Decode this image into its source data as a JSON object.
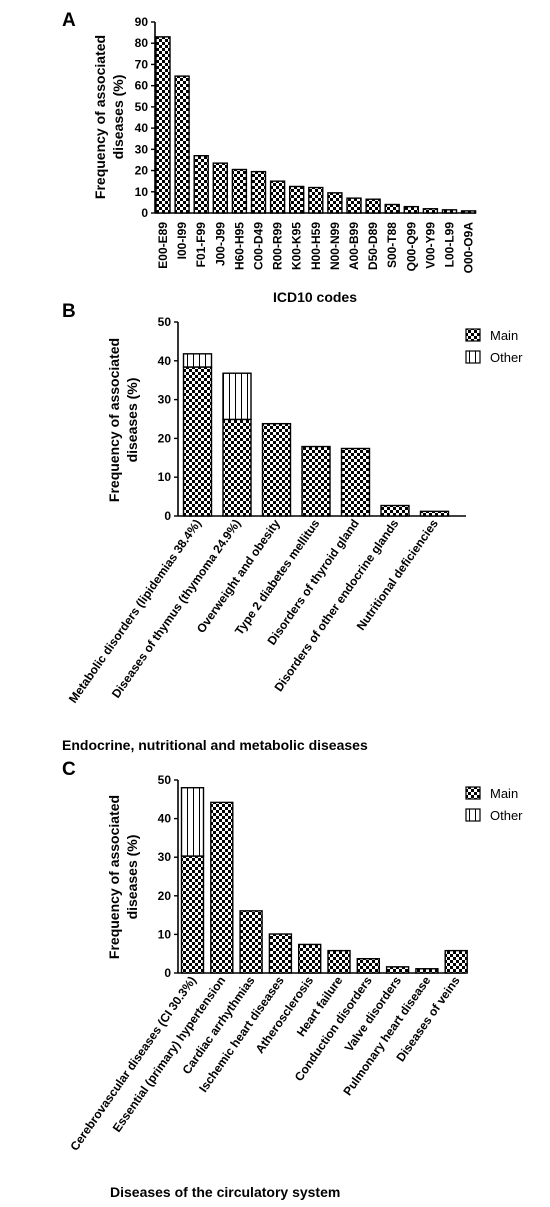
{
  "colors": {
    "bar_stroke": "#000000",
    "check_dark": "#000000",
    "check_light": "#ffffff",
    "stripe_line": "#000000"
  },
  "chart_data": [
    {
      "panel": "A",
      "type": "bar",
      "xlabel": "ICD10 codes",
      "ylabel_lines": [
        "Frequency of associated",
        "diseases (%)"
      ],
      "ylim": [
        0,
        90
      ],
      "yticks": [
        0,
        10,
        20,
        30,
        40,
        50,
        60,
        70,
        80,
        90
      ],
      "categories": [
        "E00-E89",
        "I00-I99",
        "F01-F99",
        "J00-J99",
        "H60-H95",
        "C00-D49",
        "R00-R99",
        "K00-K95",
        "H00-H59",
        "N00-N99",
        "A00-B99",
        "D50-D89",
        "S00-T88",
        "Q00-Q99",
        "V00-Y99",
        "L00-L99",
        "O00-O9A"
      ],
      "series": [
        {
          "values": [
            83,
            64.5,
            27,
            23.5,
            20.5,
            19.5,
            15,
            12.5,
            12,
            9.5,
            7,
            6.5,
            4,
            3,
            2,
            1.5,
            1
          ]
        }
      ]
    },
    {
      "panel": "B",
      "type": "bar",
      "stacked": true,
      "xlabel": "Endocrine, nutritional and metabolic diseases",
      "ylabel_lines": [
        "Frequency of associated",
        "diseases (%)"
      ],
      "ylim": [
        0,
        50
      ],
      "yticks": [
        0,
        10,
        20,
        30,
        40,
        50
      ],
      "legend": "top-right",
      "categories": [
        "Metabolic disorders (lipidemias 38.4%)",
        "Diseases of thymus (thymoma 24.9%)",
        "Overweight and obesity",
        "Type 2 diabetes mellitus",
        "Disorders of thyroid gland",
        "Disorders of other endocrine glands",
        "Nutritional deficiencies"
      ],
      "series": [
        {
          "name": "Main",
          "pattern": "check",
          "values": [
            38.4,
            24.9,
            23.8,
            17.9,
            17.4,
            2.7,
            1.2
          ]
        },
        {
          "name": "Other",
          "pattern": "stripe",
          "values": [
            3.4,
            11.9,
            0,
            0,
            0,
            0,
            0
          ]
        }
      ]
    },
    {
      "panel": "C",
      "type": "bar",
      "stacked": true,
      "xlabel": "Diseases of the circulatory system",
      "ylabel_lines": [
        "Frequency of associated",
        "diseases (%)"
      ],
      "ylim": [
        0,
        50
      ],
      "yticks": [
        0,
        10,
        20,
        30,
        40,
        50
      ],
      "legend": "top-right",
      "categories": [
        "Cerebrovascular diseases (CI 30.3%)",
        "Essential (primary) hypertension",
        "Cardiac arrhythmias",
        "Ischemic heart diseases",
        "Atherosclerosis",
        "Heart failure",
        "Conduction disorders",
        "Valve disorders",
        "Pulmonary heart disease",
        "Diseases of veins"
      ],
      "series": [
        {
          "name": "Main",
          "pattern": "check",
          "values": [
            30.3,
            44.2,
            16.1,
            10.1,
            7.4,
            5.8,
            3.7,
            1.6,
            1.1,
            5.8
          ]
        },
        {
          "name": "Other",
          "pattern": "stripe",
          "values": [
            17.7,
            0,
            0,
            0,
            0,
            0,
            0,
            0,
            0,
            0
          ]
        }
      ]
    }
  ]
}
